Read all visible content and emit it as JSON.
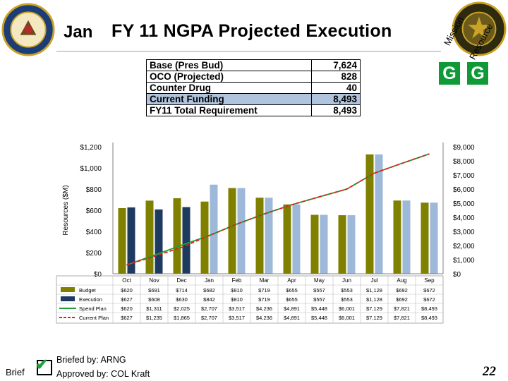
{
  "header": {
    "month": "Jan",
    "title": "FY 11 NGPA Projected Execution"
  },
  "status": {
    "mission_label": "Mission",
    "resource_label": "Resource",
    "mission_value": "G",
    "resource_value": "G",
    "color": "#0f9a37"
  },
  "funding_table": [
    {
      "label": "Base (Pres Bud)",
      "value": "7,624"
    },
    {
      "label": "OCO (Projected)",
      "value": "828"
    },
    {
      "label": "Counter Drug",
      "value": "40"
    },
    {
      "label": "Current Funding",
      "value": "8,493"
    },
    {
      "label": "FY11 Total Requirement",
      "value": "8,493"
    }
  ],
  "chart_data": {
    "type": "bar",
    "ylabel": "Resources ($M)",
    "ylim_left": [
      0,
      1200
    ],
    "ylim_right": [
      0,
      9000
    ],
    "left_ticks": [
      "$0",
      "$200",
      "$400",
      "$600",
      "$800",
      "$1,000",
      "$1,200"
    ],
    "right_ticks": [
      "$0",
      "$1,000",
      "$2,000",
      "$3,000",
      "$4,000",
      "$5,000",
      "$6,000",
      "$7,000",
      "$8,000",
      "$9,000"
    ],
    "categories": [
      "Oct",
      "Nov",
      "Dec",
      "Jan",
      "Feb",
      "Mar",
      "Apr",
      "May",
      "Jun",
      "Jul",
      "Aug",
      "Sep"
    ],
    "series": [
      {
        "name": "Budget",
        "color": "#808000",
        "axis": "left",
        "kind": "bar",
        "values": [
          620,
          691,
          714,
          682,
          810,
          719,
          655,
          557,
          553,
          1128,
          692,
          672
        ],
        "labels": [
          "$620",
          "$691",
          "$714",
          "$682",
          "$810",
          "$719",
          "$655",
          "$557",
          "$553",
          "$1,128",
          "$692",
          "$672"
        ]
      },
      {
        "name": "Execution",
        "color": "#1f3a5f",
        "actual_color": "#1f3a5f",
        "projected_color": "#9db8d9",
        "actual_months": 3,
        "axis": "left",
        "kind": "bar",
        "values": [
          627,
          608,
          630,
          842,
          810,
          719,
          655,
          557,
          553,
          1128,
          692,
          672
        ],
        "labels": [
          "$627",
          "$608",
          "$630",
          "$842",
          "$810",
          "$719",
          "$655",
          "$557",
          "$553",
          "$1,128",
          "$692",
          "$672"
        ]
      },
      {
        "name": "Spend Plan",
        "color": "#1e9e3a",
        "axis": "right",
        "kind": "line",
        "values": [
          620,
          1311,
          2025,
          2707,
          3517,
          4236,
          4891,
          5448,
          6001,
          7129,
          7821,
          8493
        ],
        "labels": [
          "$620",
          "$1,311",
          "$2,025",
          "$2,707",
          "$3,517",
          "$4,236",
          "$4,891",
          "$5,448",
          "$6,001",
          "$7,129",
          "$7,821",
          "$8,493"
        ]
      },
      {
        "name": "Current Plan",
        "color": "#e0201b",
        "axis": "right",
        "kind": "line",
        "dashed": true,
        "values": [
          627,
          1235,
          1865,
          2707,
          3517,
          4236,
          4891,
          5448,
          6001,
          7129,
          7821,
          8493
        ],
        "labels": [
          "$627",
          "$1,235",
          "$1,865",
          "$2,707",
          "$3,517",
          "$4,236",
          "$4,891",
          "$5,448",
          "$6,001",
          "$7,129",
          "$7,821",
          "$8,493"
        ]
      }
    ]
  },
  "footer": {
    "brief_label": "Brief",
    "briefed_by": "Briefed by: ARNG",
    "approved_by": "Approved by: COL Kraft",
    "page_number": "22"
  },
  "icons": {
    "left_seal": "army-seal-icon",
    "right_seal": "ngb-seal-icon",
    "check": "check-icon"
  }
}
